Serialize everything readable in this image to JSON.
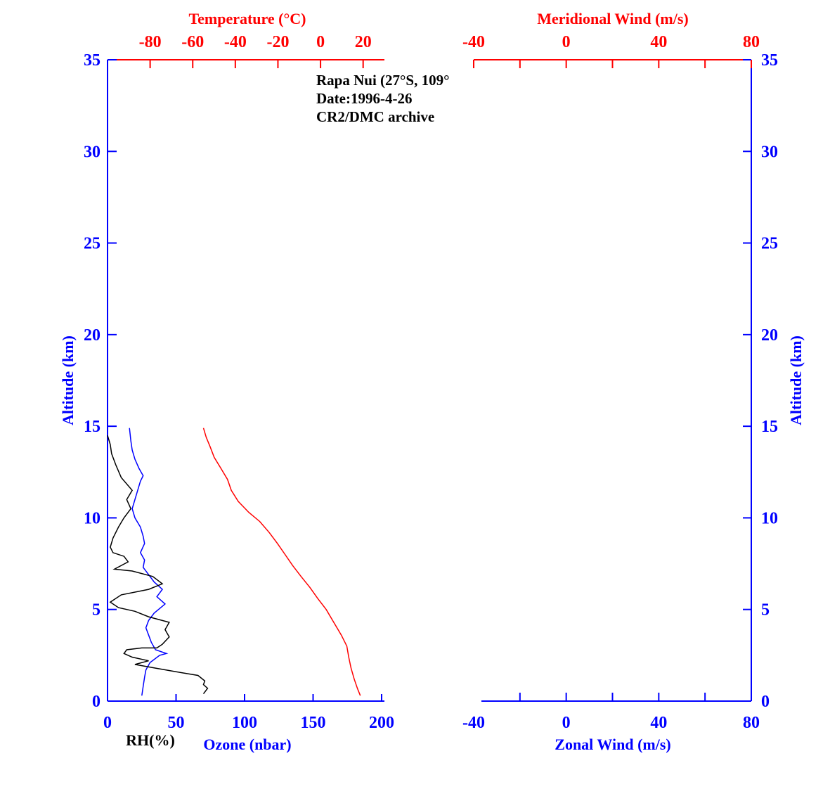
{
  "colors": {
    "blue": "#0000ff",
    "red": "#ff0000",
    "black": "#000000"
  },
  "annotation": {
    "line1": "Rapa Nui (27°S, 109°",
    "line2": "Date:1996-4-26",
    "line3": "CR2/DMC archive"
  },
  "chart_data": [
    {
      "type": "line",
      "title": "",
      "ylabel": "Altitude (km)",
      "ylim": [
        0,
        35
      ],
      "yticks": [
        "0",
        "5",
        "10",
        "15",
        "20",
        "25",
        "30",
        "35"
      ],
      "axes": {
        "ozone": {
          "label": "Ozone (nbar)",
          "range": [
            0,
            200
          ],
          "ticks": [
            "0",
            "50",
            "100",
            "150",
            "200"
          ]
        },
        "rh": {
          "label": "RH(%)"
        },
        "temperature": {
          "label": "Temperature (°C)",
          "range": [
            -100,
            30
          ],
          "ticks": [
            "-80",
            "-60",
            "-40",
            "-20",
            "0",
            "20"
          ]
        }
      },
      "series": [
        {
          "name": "Temperature",
          "axis": "temperature",
          "color": "#ff0000",
          "points": [
            [
              19.9,
              0.3
            ],
            [
              18.5,
              0.7
            ],
            [
              17.0,
              1.2
            ],
            [
              15.5,
              1.8
            ],
            [
              14.4,
              2.4
            ],
            [
              13.5,
              3.0
            ],
            [
              10.9,
              3.6
            ],
            [
              7.3,
              4.3
            ],
            [
              3.7,
              5.0
            ],
            [
              -0.3,
              5.6
            ],
            [
              -4.0,
              6.2
            ],
            [
              -8.2,
              6.8
            ],
            [
              -12.2,
              7.4
            ],
            [
              -15.8,
              8.0
            ],
            [
              -19.4,
              8.6
            ],
            [
              -23.3,
              9.2
            ],
            [
              -27.8,
              9.8
            ],
            [
              -33.0,
              10.3
            ],
            [
              -38.0,
              10.9
            ],
            [
              -41.3,
              11.5
            ],
            [
              -43.1,
              12.1
            ],
            [
              -46.2,
              12.7
            ],
            [
              -49.4,
              13.3
            ],
            [
              -51.4,
              13.9
            ],
            [
              -53.2,
              14.4
            ],
            [
              -54.5,
              14.9
            ]
          ]
        },
        {
          "name": "Ozone",
          "axis": "ozone",
          "color": "#0000ff",
          "points": [
            [
              25,
              0.3
            ],
            [
              26,
              0.8
            ],
            [
              27,
              1.3
            ],
            [
              28,
              1.7
            ],
            [
              31,
              2.1
            ],
            [
              38,
              2.5
            ],
            [
              43,
              2.6
            ],
            [
              35,
              2.8
            ],
            [
              32,
              3.2
            ],
            [
              30,
              3.6
            ],
            [
              28,
              4.0
            ],
            [
              30,
              4.4
            ],
            [
              34,
              4.8
            ],
            [
              42,
              5.3
            ],
            [
              36,
              5.7
            ],
            [
              40,
              6.1
            ],
            [
              34,
              6.5
            ],
            [
              30,
              6.9
            ],
            [
              26,
              7.3
            ],
            [
              27,
              7.7
            ],
            [
              24,
              8.1
            ],
            [
              27,
              8.6
            ],
            [
              26,
              9.0
            ],
            [
              24,
              9.5
            ],
            [
              20,
              10.0
            ],
            [
              18,
              10.5
            ],
            [
              20,
              11.0
            ],
            [
              22,
              11.5
            ],
            [
              24,
              12.0
            ],
            [
              26,
              12.3
            ],
            [
              23,
              12.7
            ],
            [
              20,
              13.2
            ],
            [
              18,
              13.7
            ],
            [
              17,
              14.2
            ],
            [
              16,
              14.9
            ]
          ]
        },
        {
          "name": "RH",
          "axis": "ozone",
          "color": "#000000",
          "points": [
            [
              70,
              0.4
            ],
            [
              73,
              0.7
            ],
            [
              70,
              0.9
            ],
            [
              71,
              1.1
            ],
            [
              66,
              1.4
            ],
            [
              50,
              1.6
            ],
            [
              35,
              1.8
            ],
            [
              20,
              2.0
            ],
            [
              30,
              2.2
            ],
            [
              18,
              2.4
            ],
            [
              12,
              2.6
            ],
            [
              14,
              2.8
            ],
            [
              25,
              2.9
            ],
            [
              36,
              2.9
            ],
            [
              40,
              3.1
            ],
            [
              45,
              3.5
            ],
            [
              42,
              3.9
            ],
            [
              45,
              4.3
            ],
            [
              30,
              4.6
            ],
            [
              20,
              4.9
            ],
            [
              8,
              5.1
            ],
            [
              2,
              5.4
            ],
            [
              10,
              5.8
            ],
            [
              30,
              6.1
            ],
            [
              40,
              6.4
            ],
            [
              33,
              6.8
            ],
            [
              18,
              7.1
            ],
            [
              5,
              7.2
            ],
            [
              15,
              7.6
            ],
            [
              12,
              7.9
            ],
            [
              4,
              8.1
            ],
            [
              2,
              8.4
            ],
            [
              4,
              8.9
            ],
            [
              8,
              9.5
            ],
            [
              12,
              10.0
            ],
            [
              17,
              10.5
            ],
            [
              14,
              11.0
            ],
            [
              18,
              11.5
            ],
            [
              10,
              12.2
            ],
            [
              6,
              12.9
            ],
            [
              3,
              13.5
            ],
            [
              2,
              14.0
            ],
            [
              0,
              14.5
            ]
          ]
        }
      ]
    },
    {
      "type": "line",
      "title": "",
      "ylabel": "Altitude (km)",
      "ylim": [
        0,
        35
      ],
      "yticks": [
        "0",
        "5",
        "10",
        "15",
        "20",
        "25",
        "30",
        "35"
      ],
      "axes": {
        "zonal": {
          "label": "Zonal Wind (m/s)",
          "range": [
            -40,
            80
          ],
          "ticks": [
            "-40",
            "0",
            "40",
            "80"
          ]
        },
        "meridional": {
          "label": "Meridional Wind (m/s)",
          "range": [
            -40,
            80
          ],
          "ticks": [
            "-40",
            "0",
            "40",
            "80"
          ]
        }
      },
      "series": []
    }
  ]
}
